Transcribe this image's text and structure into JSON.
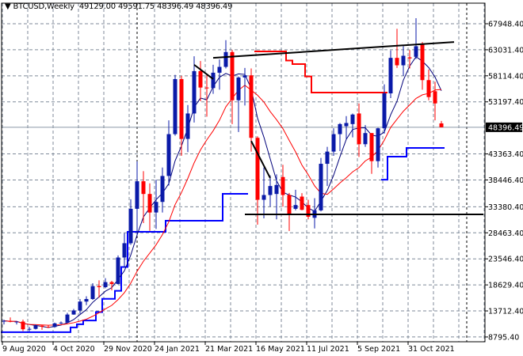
{
  "header": {
    "symbol": "BTCUSD,Weekly",
    "ohlc": "49129.00 49591.75 48396.49 48396.49",
    "menu_icon": "triangle-down-icon"
  },
  "chart_data": {
    "type": "candlestick",
    "title": "BTCUSD,Weekly",
    "ylim": [
      7889,
      71833
    ],
    "grid": true,
    "colors": {
      "bull": "#0a1aa8",
      "bear": "#ff0000",
      "fast_ma": "#00007a",
      "slow_ma": "#ff0000",
      "support": "#0000ff",
      "resistance": "#ff0000",
      "trendline": "#000000",
      "grid": "#7f8a99"
    },
    "y_ticks": [
      "67948.40",
      "63031.40",
      "58114.40",
      "53197.40",
      "43363.40",
      "38446.40",
      "33380.40",
      "28463.40",
      "23546.40",
      "18629.40",
      "13712.40",
      "8795.40"
    ],
    "current_price": "48396.49",
    "x_ticks": [
      {
        "date": "2020-08-09",
        "label": "9 Aug 2020"
      },
      {
        "date": "2020-10-04",
        "label": "4 Oct 2020"
      },
      {
        "date": "2020-11-29",
        "label": "29 Nov 2020"
      },
      {
        "date": "2021-01-24",
        "label": "24 Jan 2021"
      },
      {
        "date": "2021-03-21",
        "label": "21 Mar 2021"
      },
      {
        "date": "2021-05-16",
        "label": "16 May 2021"
      },
      {
        "date": "2021-07-11",
        "label": "11 Jul 2021"
      },
      {
        "date": "2021-09-05",
        "label": "5 Sep 2021"
      },
      {
        "date": "2021-10-31",
        "label": "31 Oct 2021"
      }
    ],
    "candles_columns": [
      "date",
      "open",
      "high",
      "low",
      "close"
    ],
    "candles": [
      [
        "2020-08-09",
        11700,
        12050,
        11150,
        11850
      ],
      [
        "2020-08-16",
        11850,
        12480,
        11560,
        11650
      ],
      [
        "2020-08-23",
        11650,
        11800,
        11150,
        11700
      ],
      [
        "2020-08-30",
        11700,
        12080,
        9900,
        10250
      ],
      [
        "2020-09-06",
        10250,
        10700,
        9850,
        10330
      ],
      [
        "2020-09-13",
        10330,
        11180,
        10200,
        10930
      ],
      [
        "2020-09-20",
        10930,
        11100,
        10150,
        10730
      ],
      [
        "2020-09-27",
        10730,
        10960,
        10500,
        10680
      ],
      [
        "2020-10-04",
        10680,
        11500,
        10540,
        11370
      ],
      [
        "2020-10-11",
        11370,
        11720,
        11200,
        11500
      ],
      [
        "2020-10-18",
        11500,
        13350,
        11400,
        13030
      ],
      [
        "2020-10-25",
        13030,
        14080,
        12980,
        13800
      ],
      [
        "2020-11-01",
        13800,
        15950,
        13200,
        15480
      ],
      [
        "2020-11-08",
        15480,
        16480,
        14800,
        15960
      ],
      [
        "2020-11-15",
        15960,
        18950,
        15800,
        18400
      ],
      [
        "2020-11-22",
        18400,
        19480,
        16200,
        18200
      ],
      [
        "2020-11-29",
        18200,
        19900,
        18000,
        19150
      ],
      [
        "2020-12-06",
        19150,
        19400,
        17600,
        18800
      ],
      [
        "2020-12-13",
        18800,
        24200,
        18700,
        23800
      ],
      [
        "2020-12-20",
        23800,
        28400,
        21900,
        26500
      ],
      [
        "2020-12-27",
        26500,
        34800,
        26200,
        33000
      ],
      [
        "2021-01-03",
        33000,
        41950,
        28100,
        38200
      ],
      [
        "2021-01-10",
        38200,
        40100,
        30300,
        35800
      ],
      [
        "2021-01-17",
        35800,
        37800,
        28850,
        32300
      ],
      [
        "2021-01-24",
        32300,
        38500,
        29200,
        34300
      ],
      [
        "2021-01-31",
        34300,
        40800,
        32300,
        39200
      ],
      [
        "2021-02-07",
        39200,
        49700,
        37400,
        47100
      ],
      [
        "2021-02-14",
        47100,
        58300,
        46800,
        57500
      ],
      [
        "2021-02-21",
        57500,
        58100,
        43000,
        46200
      ],
      [
        "2021-02-28",
        46200,
        52600,
        43700,
        51000
      ],
      [
        "2021-03-07",
        51000,
        61800,
        49300,
        59000
      ],
      [
        "2021-03-14",
        59000,
        60900,
        53300,
        55900
      ],
      [
        "2021-03-21",
        55900,
        58400,
        50400,
        55800
      ],
      [
        "2021-03-28",
        55800,
        60200,
        54700,
        58700
      ],
      [
        "2021-04-04",
        58700,
        61200,
        55500,
        59800
      ],
      [
        "2021-04-11",
        59800,
        64850,
        59500,
        62600
      ],
      [
        "2021-04-18",
        62600,
        63000,
        49000,
        53500
      ],
      [
        "2021-04-25",
        53500,
        58000,
        47500,
        57800
      ],
      [
        "2021-05-02",
        57800,
        59600,
        52500,
        58200
      ],
      [
        "2021-05-09",
        58200,
        59500,
        43800,
        46400
      ],
      [
        "2021-05-16",
        46400,
        46700,
        30000,
        34700
      ],
      [
        "2021-05-23",
        34700,
        40800,
        31200,
        35600
      ],
      [
        "2021-05-30",
        35600,
        39300,
        33400,
        37300
      ],
      [
        "2021-06-06",
        35800,
        39500,
        31000,
        37500
      ],
      [
        "2021-06-13",
        39000,
        41300,
        33400,
        35600
      ],
      [
        "2021-06-20",
        35600,
        36000,
        28800,
        32000
      ],
      [
        "2021-06-27",
        33000,
        36600,
        32700,
        33700
      ],
      [
        "2021-07-04",
        35300,
        35950,
        32700,
        32800
      ],
      [
        "2021-07-11",
        33700,
        34700,
        31000,
        31500
      ],
      [
        "2021-07-18",
        31300,
        35000,
        29300,
        32700
      ],
      [
        "2021-07-25",
        32700,
        42600,
        32500,
        41500
      ],
      [
        "2021-08-01",
        41500,
        44700,
        37300,
        43800
      ],
      [
        "2021-08-08",
        43800,
        48200,
        43000,
        47100
      ],
      [
        "2021-08-15",
        47100,
        49200,
        43900,
        49000
      ],
      [
        "2021-08-22",
        48600,
        50500,
        46200,
        49200
      ],
      [
        "2021-08-29",
        49000,
        51000,
        46500,
        50800
      ],
      [
        "2021-09-05",
        51000,
        52900,
        42800,
        45200
      ],
      [
        "2021-09-12",
        45200,
        48800,
        44700,
        47300
      ],
      [
        "2021-09-19",
        47300,
        47300,
        39600,
        42000
      ],
      [
        "2021-09-26",
        42000,
        48300,
        40800,
        48200
      ],
      [
        "2021-10-03",
        48200,
        56500,
        47200,
        54800
      ],
      [
        "2021-10-10",
        54800,
        62900,
        53900,
        61500
      ],
      [
        "2021-10-17",
        61500,
        67000,
        59600,
        60100
      ],
      [
        "2021-10-24",
        60100,
        63700,
        58100,
        61900
      ],
      [
        "2021-10-31",
        61600,
        63000,
        59500,
        61400
      ],
      [
        "2021-11-07",
        61700,
        69000,
        61300,
        63700
      ],
      [
        "2021-11-14",
        64000,
        64500,
        55500,
        57300
      ],
      [
        "2021-11-21",
        57300,
        59300,
        53500,
        54100
      ],
      [
        "2021-11-28",
        55200,
        57000,
        49700,
        52900
      ],
      [
        "2021-12-05",
        49129,
        49591.75,
        48396.49,
        48396.49
      ]
    ],
    "support_steps": [
      9700,
      9700,
      9700,
      9700,
      9700,
      9700,
      9700,
      9700,
      9700,
      9700,
      9700,
      10600,
      11200,
      11900,
      11900,
      13500,
      16000,
      16000,
      17500,
      22000,
      28650,
      28650,
      28650,
      28650,
      28650,
      28650,
      30750,
      30750,
      30750,
      30750,
      30750,
      30750,
      30750,
      30750,
      30750,
      35830,
      35830,
      35830,
      35830,
      null,
      null,
      null,
      null,
      null,
      null,
      null,
      null,
      null,
      null,
      null,
      null,
      null,
      null,
      null,
      null,
      null,
      null,
      null,
      null,
      null,
      38500,
      42850,
      42850,
      42850,
      44500,
      44500,
      44500,
      44500,
      44500,
      44500
    ],
    "resistance_steps": [
      null,
      null,
      null,
      null,
      null,
      null,
      null,
      null,
      null,
      null,
      null,
      null,
      null,
      null,
      null,
      null,
      null,
      null,
      null,
      null,
      null,
      null,
      null,
      null,
      null,
      null,
      null,
      null,
      null,
      null,
      null,
      null,
      null,
      null,
      null,
      null,
      null,
      null,
      null,
      null,
      62720,
      62720,
      62720,
      62720,
      62720,
      61000,
      60330,
      60330,
      58000,
      54950,
      54950,
      54950,
      54950,
      54950,
      54950,
      54950,
      54950,
      54950,
      54950,
      54950,
      54950,
      null,
      null,
      null,
      null,
      null,
      null,
      null,
      null,
      null
    ],
    "trendlines": [
      {
        "from": [
          "2021-03-28",
          61500
        ],
        "to": [
          "2021-12-19",
          64500
        ]
      },
      {
        "from": [
          "2021-03-07",
          60200
        ],
        "to": [
          "2021-03-28",
          57500
        ]
      },
      {
        "from": [
          "2021-05-09",
          45800
        ],
        "to": [
          "2021-05-30",
          38800
        ]
      },
      {
        "from": [
          "2021-05-02",
          31950
        ],
        "to": [
          "2022-01-23",
          31950
        ]
      }
    ],
    "period_separators": [
      "2021-01-03",
      "2022-01-02"
    ]
  }
}
